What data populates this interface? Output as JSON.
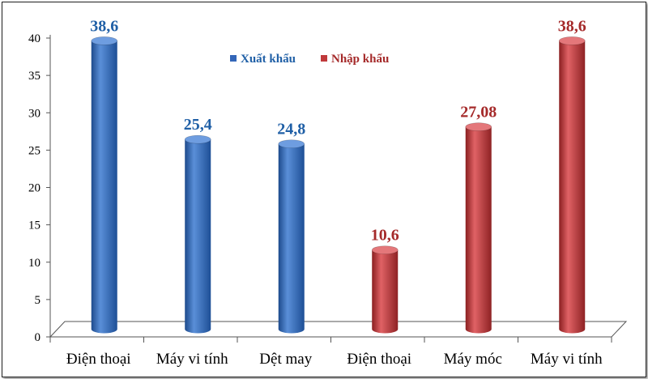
{
  "chart_data": {
    "type": "bar",
    "categories": [
      "Điện thoại",
      "Máy vi tính",
      "Dệt may",
      "Điện thoại",
      "Máy móc",
      "Máy vi tính"
    ],
    "series": [
      {
        "name": "Xuất khẩu",
        "color": "#3366b8",
        "label_color": "#1f5fa6",
        "values": [
          38.6,
          25.4,
          24.8,
          null,
          null,
          null
        ],
        "labels": [
          "38,6",
          "25,4",
          "24,8",
          "",
          "",
          ""
        ]
      },
      {
        "name": "Nhập khẩu",
        "color": "#c0393b",
        "label_color": "#a52a2a",
        "values": [
          null,
          null,
          null,
          10.6,
          27.08,
          38.6
        ],
        "labels": [
          "",
          "",
          "",
          "10,6",
          "27,08",
          "38,6"
        ]
      }
    ],
    "ylim": [
      0,
      40
    ],
    "yticks": [
      0,
      5,
      10,
      15,
      20,
      25,
      30,
      35,
      40
    ],
    "legend_position": "top",
    "grid": false,
    "style": "3d-cylinder"
  }
}
